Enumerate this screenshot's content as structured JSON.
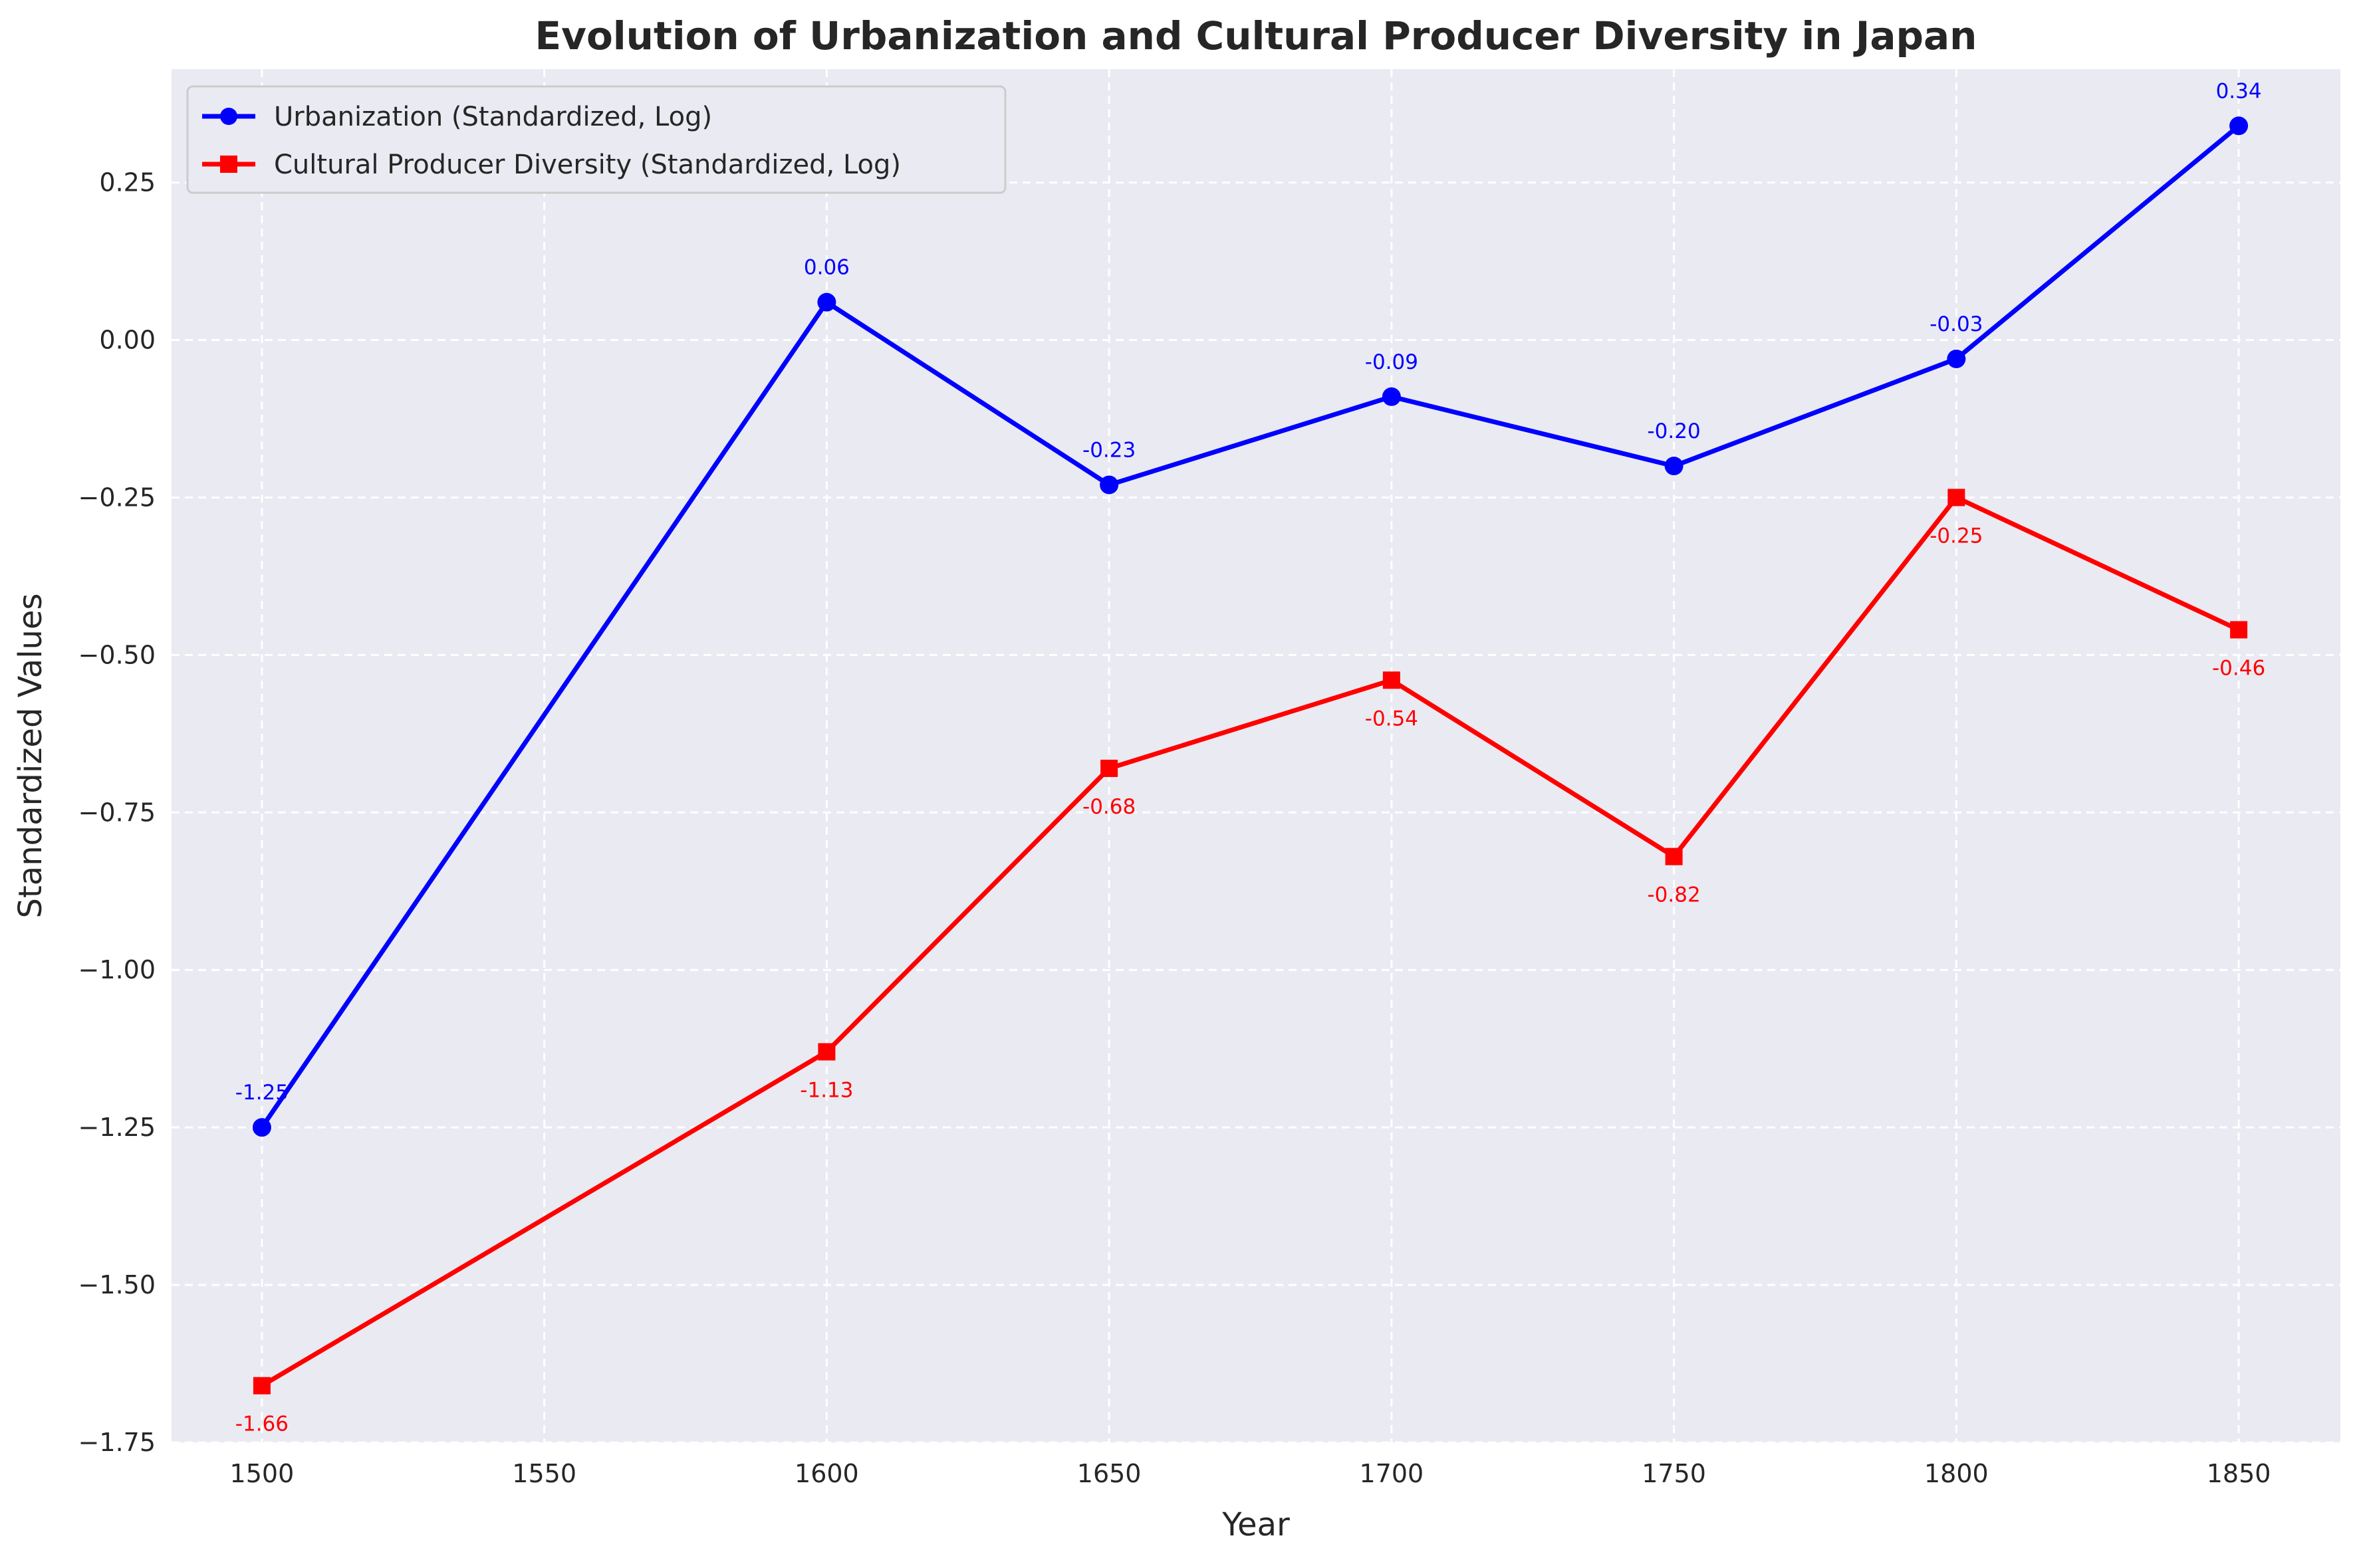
{
  "chart_data": {
    "type": "line",
    "title": "Evolution of Urbanization and Cultural Producer Diversity in Japan",
    "xlabel": "Year",
    "ylabel": "Standardized Values",
    "x": [
      1500,
      1600,
      1650,
      1700,
      1750,
      1800,
      1850
    ],
    "xlim": [
      1484,
      1868
    ],
    "ylim": [
      -1.75,
      0.43
    ],
    "xticks": [
      1500,
      1550,
      1600,
      1650,
      1700,
      1750,
      1800,
      1850
    ],
    "yticks": [
      0.25,
      0.0,
      -0.25,
      -0.5,
      -0.75,
      -1.0,
      -1.25,
      -1.5,
      -1.75
    ],
    "grid": true,
    "legend_position": "top-left",
    "background": "#eaeaf2",
    "series": [
      {
        "name": "Urbanization (Standardized, Log)",
        "color": "#0000ff",
        "marker": "circle",
        "values": [
          -1.25,
          0.06,
          -0.23,
          -0.09,
          -0.2,
          -0.03,
          0.34
        ],
        "labels": [
          "-1.25",
          "0.06",
          "-0.23",
          "-0.09",
          "-0.20",
          "-0.03",
          "0.34"
        ],
        "label_position": "above"
      },
      {
        "name": "Cultural Producer Diversity (Standardized, Log)",
        "color": "#ff0000",
        "marker": "square",
        "values": [
          -1.66,
          -1.13,
          -0.68,
          -0.54,
          -0.82,
          -0.25,
          -0.46
        ],
        "labels": [
          "-1.66",
          "-1.13",
          "-0.68",
          "-0.54",
          "-0.82",
          "-0.25",
          "-0.46"
        ],
        "label_position": "below"
      }
    ]
  }
}
